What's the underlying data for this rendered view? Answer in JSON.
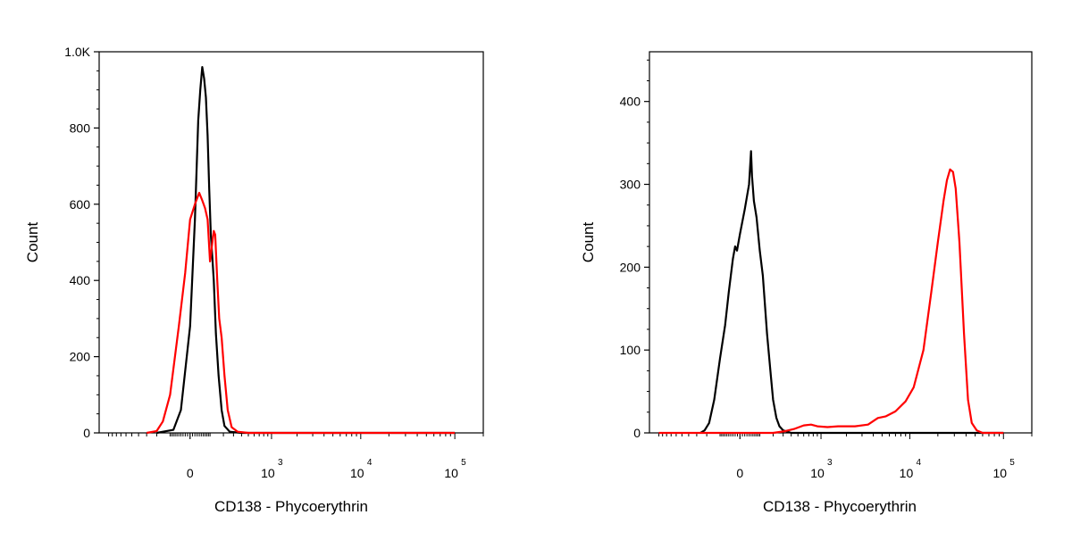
{
  "chart_data": [
    {
      "type": "line",
      "title": "",
      "xlabel": "CD138 - Phycoerythrin",
      "ylabel": "Count",
      "x_scale": "biexponential",
      "x_tick_labels": [
        {
          "base": "0",
          "exp": ""
        },
        {
          "base": "10",
          "exp": "3"
        },
        {
          "base": "10",
          "exp": "4"
        },
        {
          "base": "10",
          "exp": "5"
        }
      ],
      "ylim": [
        0,
        1000
      ],
      "y_tick_labels": [
        "0",
        "200",
        "400",
        "600",
        "800",
        "1.0K"
      ],
      "y_tick_values": [
        0,
        200,
        400,
        600,
        800,
        1000
      ],
      "grid": false,
      "legend": "none",
      "series": [
        {
          "color": "#000000",
          "points": [
            [
              -200,
              0
            ],
            [
              -80,
              8
            ],
            [
              -40,
              60
            ],
            [
              0,
              280
            ],
            [
              20,
              560
            ],
            [
              35,
              820
            ],
            [
              45,
              900
            ],
            [
              55,
              960
            ],
            [
              65,
              930
            ],
            [
              75,
              880
            ],
            [
              85,
              780
            ],
            [
              95,
              640
            ],
            [
              105,
              520
            ],
            [
              115,
              460
            ],
            [
              125,
              400
            ],
            [
              140,
              260
            ],
            [
              160,
              150
            ],
            [
              185,
              60
            ],
            [
              210,
              18
            ],
            [
              260,
              3
            ],
            [
              400,
              0
            ],
            [
              100000,
              0
            ]
          ]
        },
        {
          "color": "#ff0000",
          "points": [
            [
              -300,
              0
            ],
            [
              -200,
              5
            ],
            [
              -150,
              30
            ],
            [
              -100,
              100
            ],
            [
              -50,
              280
            ],
            [
              -20,
              420
            ],
            [
              0,
              560
            ],
            [
              20,
              600
            ],
            [
              40,
              630
            ],
            [
              55,
              610
            ],
            [
              70,
              590
            ],
            [
              85,
              560
            ],
            [
              100,
              450
            ],
            [
              115,
              500
            ],
            [
              125,
              530
            ],
            [
              135,
              520
            ],
            [
              150,
              400
            ],
            [
              165,
              300
            ],
            [
              185,
              250
            ],
            [
              210,
              150
            ],
            [
              240,
              60
            ],
            [
              280,
              15
            ],
            [
              350,
              3
            ],
            [
              500,
              0
            ],
            [
              100000,
              0
            ]
          ]
        }
      ]
    },
    {
      "type": "line",
      "title": "",
      "xlabel": "CD138 - Phycoerythrin",
      "ylabel": "Count",
      "x_scale": "biexponential",
      "x_tick_labels": [
        {
          "base": "0",
          "exp": ""
        },
        {
          "base": "10",
          "exp": "3"
        },
        {
          "base": "10",
          "exp": "4"
        },
        {
          "base": "10",
          "exp": "5"
        }
      ],
      "ylim": [
        0,
        460
      ],
      "y_tick_labels": [
        "0",
        "100",
        "200",
        "300",
        "400"
      ],
      "y_tick_values": [
        0,
        100,
        200,
        300,
        400
      ],
      "grid": false,
      "legend": "none",
      "series": [
        {
          "color": "#000000",
          "points": [
            [
              -260,
              0
            ],
            [
              -220,
              3
            ],
            [
              -180,
              12
            ],
            [
              -140,
              40
            ],
            [
              -100,
              90
            ],
            [
              -70,
              130
            ],
            [
              -50,
              170
            ],
            [
              -40,
              190
            ],
            [
              -30,
              210
            ],
            [
              -20,
              225
            ],
            [
              -12,
              220
            ],
            [
              0,
              240
            ],
            [
              20,
              270
            ],
            [
              40,
              300
            ],
            [
              50,
              340
            ],
            [
              55,
              310
            ],
            [
              65,
              280
            ],
            [
              80,
              260
            ],
            [
              100,
              220
            ],
            [
              120,
              190
            ],
            [
              150,
              120
            ],
            [
              180,
              70
            ],
            [
              200,
              40
            ],
            [
              230,
              18
            ],
            [
              260,
              8
            ],
            [
              300,
              3
            ],
            [
              400,
              0
            ],
            [
              100000,
              0
            ]
          ]
        },
        {
          "color": "#ff0000",
          "points": [
            [
              -1000,
              0
            ],
            [
              200,
              0
            ],
            [
              320,
              2
            ],
            [
              450,
              5
            ],
            [
              600,
              9
            ],
            [
              750,
              10
            ],
            [
              900,
              8
            ],
            [
              1200,
              7
            ],
            [
              1600,
              8
            ],
            [
              2500,
              8
            ],
            [
              3500,
              10
            ],
            [
              4500,
              18
            ],
            [
              5500,
              20
            ],
            [
              7000,
              26
            ],
            [
              9000,
              38
            ],
            [
              11000,
              55
            ],
            [
              14000,
              100
            ],
            [
              17000,
              170
            ],
            [
              20000,
              230
            ],
            [
              23000,
              280
            ],
            [
              25000,
              305
            ],
            [
              27000,
              318
            ],
            [
              29000,
              315
            ],
            [
              31000,
              295
            ],
            [
              34000,
              230
            ],
            [
              38000,
              120
            ],
            [
              42000,
              40
            ],
            [
              46000,
              12
            ],
            [
              52000,
              3
            ],
            [
              60000,
              0
            ],
            [
              100000,
              0
            ]
          ]
        }
      ]
    }
  ]
}
